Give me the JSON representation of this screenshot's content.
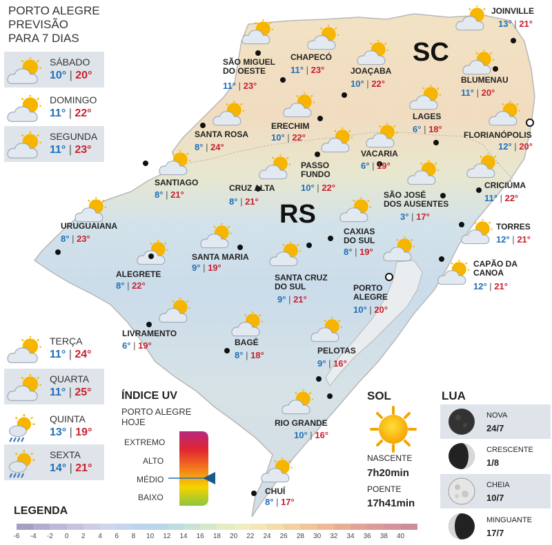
{
  "header": {
    "title_line1": "PORTO ALEGRE",
    "title_line2": "PREVISÃO",
    "title_line3": "PARA 7 DIAS"
  },
  "forecast": [
    {
      "day": "SÁBADO",
      "min": "10°",
      "max": "20°",
      "icon": "partly-cloudy-icon"
    },
    {
      "day": "DOMINGO",
      "min": "11°",
      "max": "22°",
      "icon": "partly-cloudy-icon"
    },
    {
      "day": "SEGUNDA",
      "min": "11°",
      "max": "23°",
      "icon": "partly-cloudy-icon"
    },
    {
      "day": "TERÇA",
      "min": "11°",
      "max": "24°",
      "icon": "partly-cloudy-icon"
    },
    {
      "day": "QUARTA",
      "min": "11°",
      "max": "25°",
      "icon": "partly-cloudy-icon"
    },
    {
      "day": "QUINTA",
      "min": "13°",
      "max": "19°",
      "icon": "sun-rain-icon"
    },
    {
      "day": "SEXTA",
      "min": "14°",
      "max": "21°",
      "icon": "sun-rain-icon"
    }
  ],
  "states": {
    "sc": "SC",
    "rs": "RS"
  },
  "cities": [
    {
      "name": "JOINVILLE",
      "min": "13°",
      "max": "21°"
    },
    {
      "name": "SÃO MIGUEL\nDO OESTE",
      "min": "11°",
      "max": "23°"
    },
    {
      "name": "CHAPECÓ",
      "min": "11°",
      "max": "23°"
    },
    {
      "name": "JOAÇABA",
      "min": "10°",
      "max": "22°"
    },
    {
      "name": "BLUMENAU",
      "min": "11°",
      "max": "20°"
    },
    {
      "name": "LAGES",
      "min": "6°",
      "max": "18°"
    },
    {
      "name": "FLORIANÓPOLIS",
      "min": "12°",
      "max": "20°"
    },
    {
      "name": "SANTA ROSA",
      "min": "8°",
      "max": "24°"
    },
    {
      "name": "ERECHIM",
      "min": "10°",
      "max": "22°"
    },
    {
      "name": "VACARIA",
      "min": "6°",
      "max": "19°"
    },
    {
      "name": "PASSO\nFUNDO",
      "min": "10°",
      "max": "22°"
    },
    {
      "name": "SANTIAGO",
      "min": "8°",
      "max": "21°"
    },
    {
      "name": "CRUZ ALTA",
      "min": "8°",
      "max": "21°"
    },
    {
      "name": "SÃO JOSÉ\nDOS AUSENTES",
      "min": "3°",
      "max": "17°"
    },
    {
      "name": "CRICIÚMA",
      "min": "11°",
      "max": "22°"
    },
    {
      "name": "URUGUAIANA",
      "min": "8°",
      "max": "23°"
    },
    {
      "name": "CAXIAS\nDO SUL",
      "min": "8°",
      "max": "19°"
    },
    {
      "name": "TORRES",
      "min": "12°",
      "max": "21°"
    },
    {
      "name": "SANTA MARIA",
      "min": "9°",
      "max": "19°"
    },
    {
      "name": "ALEGRETE",
      "min": "8°",
      "max": "22°"
    },
    {
      "name": "SANTA CRUZ\nDO SUL",
      "min": "9°",
      "max": "21°"
    },
    {
      "name": "PORTO\nALEGRE",
      "min": "10°",
      "max": "20°"
    },
    {
      "name": "CAPÃO DA\nCANOA",
      "min": "12°",
      "max": "21°"
    },
    {
      "name": "LIVRAMENTO",
      "min": "6°",
      "max": "19°"
    },
    {
      "name": "BAGÉ",
      "min": "8°",
      "max": "18°"
    },
    {
      "name": "PELOTAS",
      "min": "9°",
      "max": "16°"
    },
    {
      "name": "RIO GRANDE",
      "min": "10°",
      "max": "16°"
    },
    {
      "name": "CHUÍ",
      "min": "8°",
      "max": "17°"
    }
  ],
  "uv": {
    "title": "ÍNDICE UV",
    "subtitle": "PORTO ALEGRE\nHOJE",
    "levels": [
      "EXTREMO",
      "ALTO",
      "MÉDIO",
      "BAIXO"
    ],
    "current": "MÉDIO"
  },
  "sun": {
    "title": "SOL",
    "sunrise_label": "NASCENTE",
    "sunrise": "7h20min",
    "sunset_label": "POENTE",
    "sunset": "17h41min"
  },
  "moon": {
    "title": "LUA",
    "phases": [
      {
        "name": "NOVA",
        "date": "24/7"
      },
      {
        "name": "CRESCENTE",
        "date": "1/8"
      },
      {
        "name": "CHEIA",
        "date": "10/7"
      },
      {
        "name": "MINGUANTE",
        "date": "17/7"
      }
    ]
  },
  "legend": {
    "title": "LEGENDA",
    "ticks": [
      "-6",
      "-4",
      "-2",
      "0",
      "2",
      "4",
      "6",
      "8",
      "10",
      "12",
      "14",
      "16",
      "18",
      "20",
      "22",
      "24",
      "26",
      "28",
      "30",
      "32",
      "34",
      "36",
      "38",
      "40"
    ],
    "colors": [
      "#a59fc3",
      "#b3acd0",
      "#bdb7d8",
      "#c7c3df",
      "#cfcde6",
      "#cdd6ea",
      "#c4d6ee",
      "#bcd4ee",
      "#b8d6e8",
      "#bcdce0",
      "#c8e2d5",
      "#d6e8cb",
      "#e4ecc4",
      "#efeec0",
      "#f4e6b6",
      "#f4dcac",
      "#f3d0a3",
      "#f1c59b",
      "#eeb996",
      "#e8ae94",
      "#e2a396",
      "#dc9a98",
      "#d6939b",
      "#cf8d9c"
    ]
  }
}
